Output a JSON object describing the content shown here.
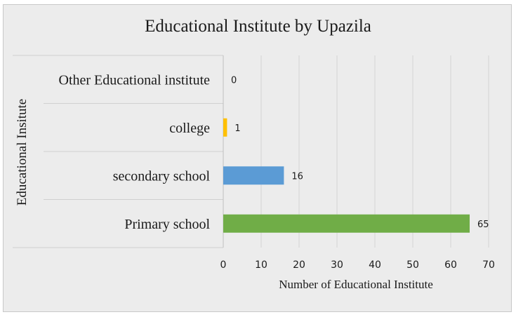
{
  "chart_data": {
    "type": "bar",
    "orientation": "horizontal",
    "title": "Educational Institute by Upazila",
    "xlabel": "Number of Educational Institute",
    "ylabel": "Educational Insitute",
    "categories": [
      "Primary school",
      "secondary school",
      "college",
      "Other Educational institute"
    ],
    "values": [
      65,
      16,
      1,
      0
    ],
    "colors": [
      "#70ad47",
      "#5b9bd5",
      "#ffc000",
      "#a5a5a5"
    ],
    "xlim": [
      0,
      70
    ],
    "xticks": [
      "0",
      "10",
      "20",
      "30",
      "40",
      "50",
      "60",
      "70"
    ],
    "grid": true,
    "legend": "none"
  }
}
